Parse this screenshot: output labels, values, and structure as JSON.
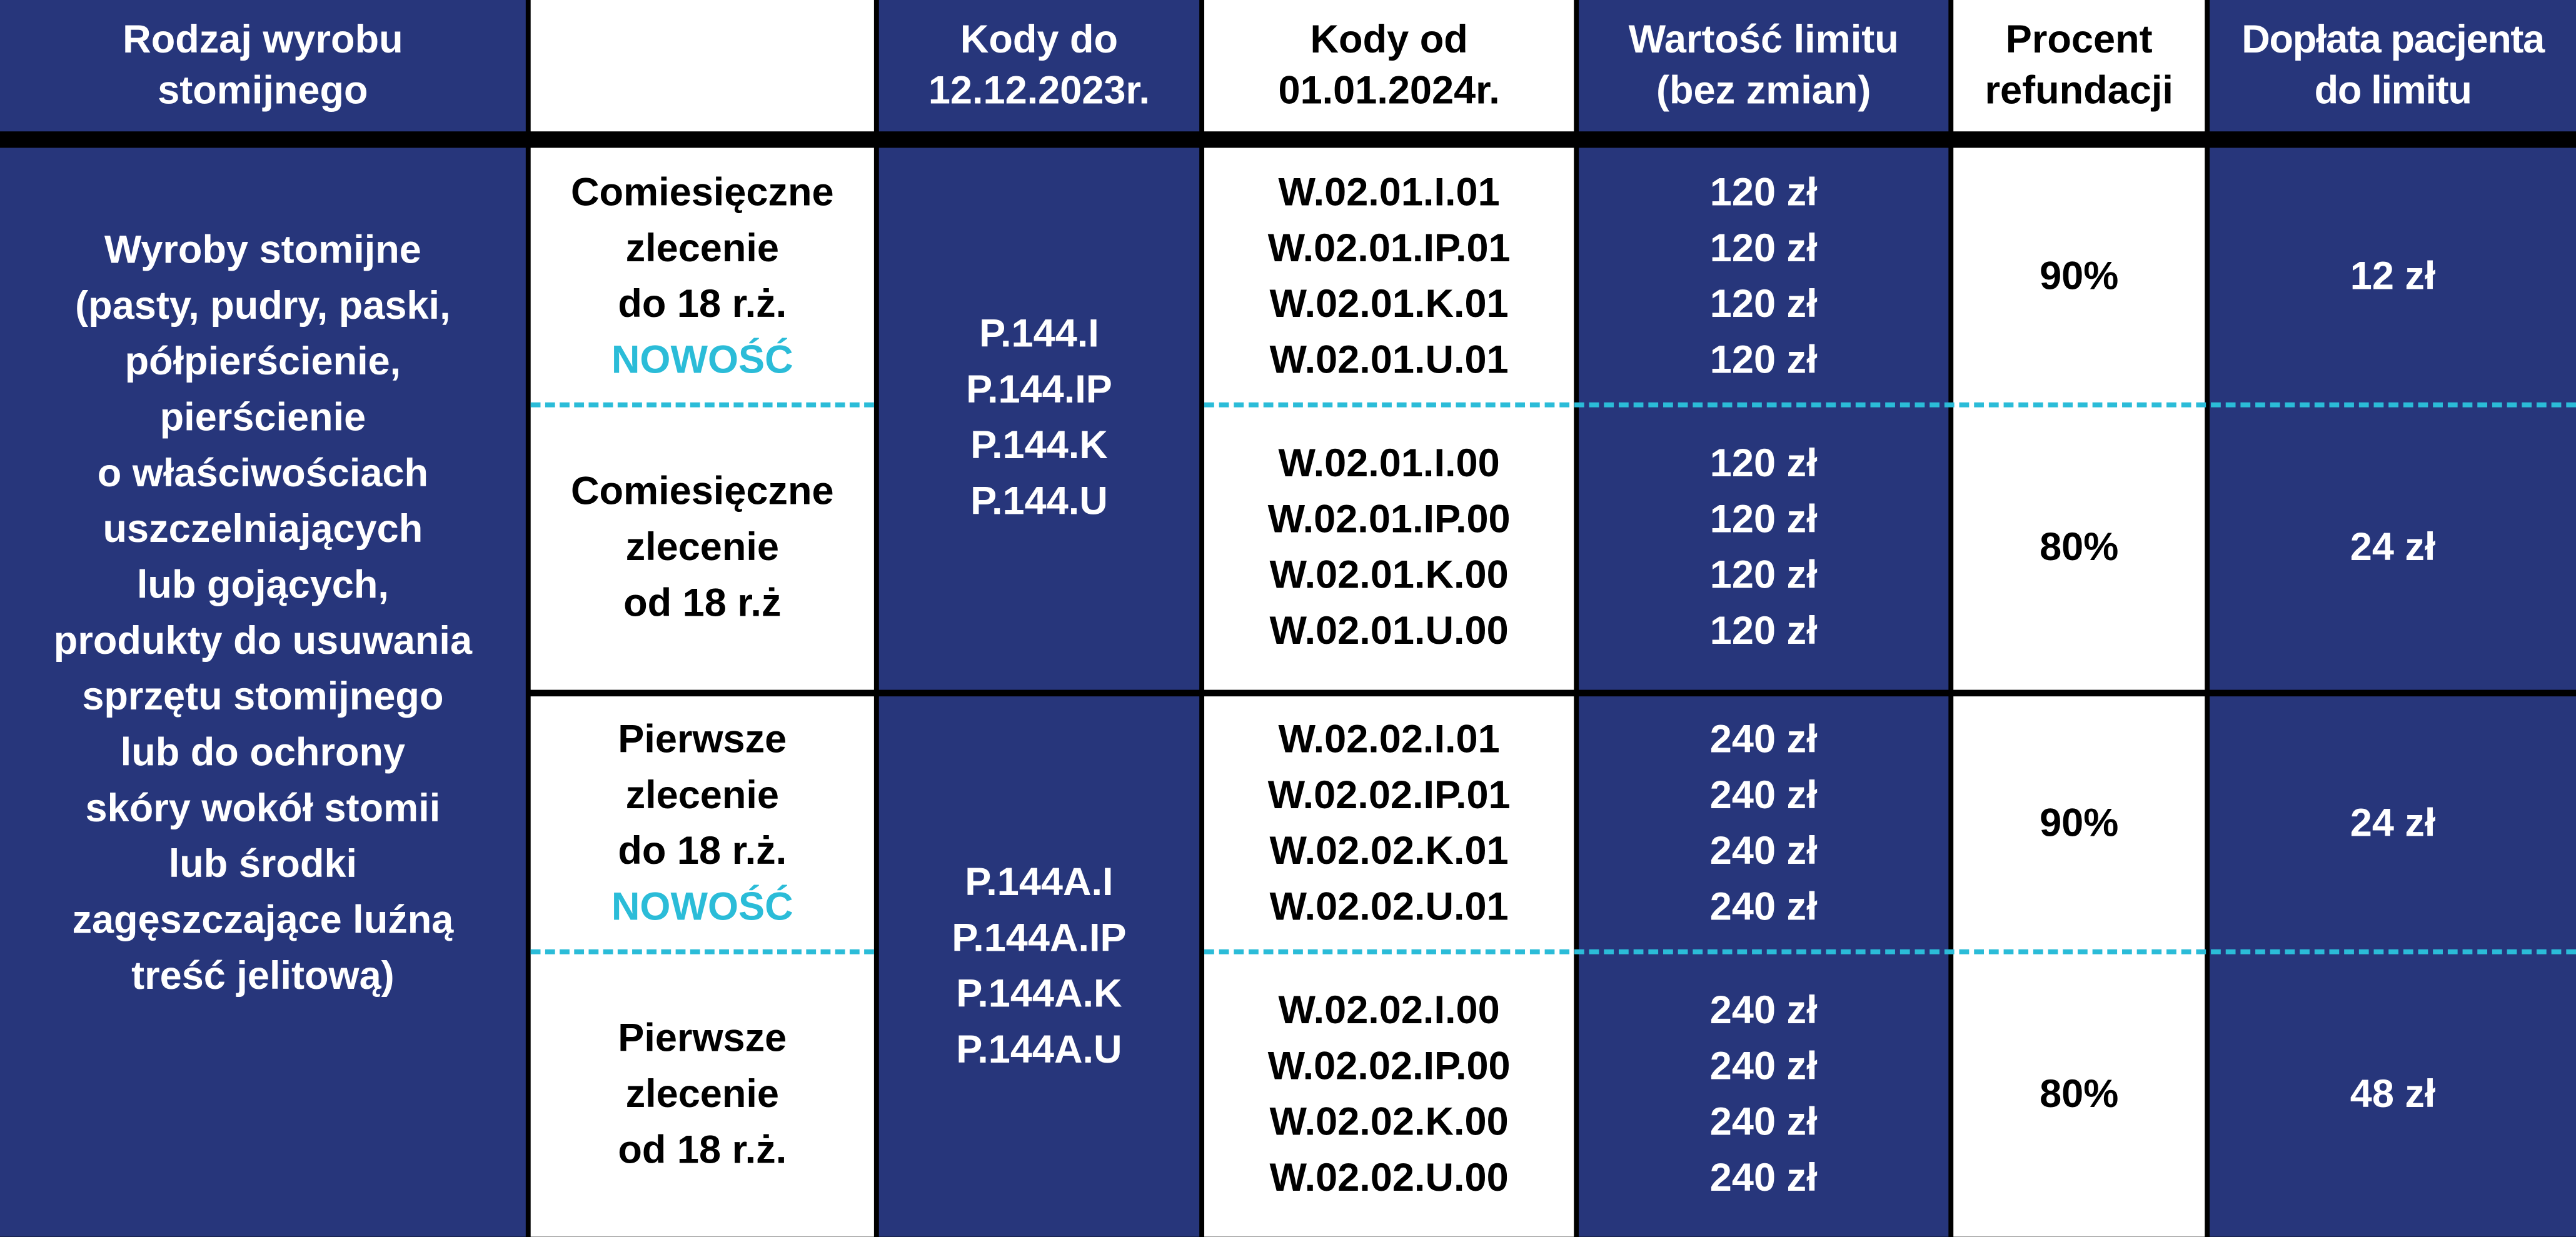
{
  "header": {
    "product_type": "Rodzaj wyrobu\nstomijnego",
    "empty": "",
    "codes_until": "Kody do\n12.12.2023r.",
    "codes_from": "Kody od\n01.01.2024r.",
    "limit_value": "Wartość limitu\n(bez zmian)",
    "refund_percent": "Procent\nrefundacji",
    "patient_copay": "Dopłata pacjenta\ndo limitu"
  },
  "product_description": "Wyroby stomijne\n(pasty, pudry, paski,\npółpierścienie,\npierścienie\no właściwościach\nuszczelniających\nlub gojących,\nprodukty do usuwania\nsprzętu stomijnego\nlub do ochrony\nskóry wokół stomii\nlub środki\nzagęszczające luźną\ntreść jelitową)",
  "groups": [
    {
      "old_codes": "P.144.I\nP.144.IP\nP.144.K\nP.144.U",
      "rows": [
        {
          "order": "Comiesięczne\nzlecenie\ndo 18 r.ż.",
          "badge": "NOWOŚĆ",
          "new_codes": "W.02.01.I.01\nW.02.01.IP.01\nW.02.01.K.01\nW.02.01.U.01",
          "limits": "120 zł\n120 zł\n120 zł\n120 zł",
          "percent": "90%",
          "copay": "12 zł"
        },
        {
          "order": "Comiesięczne\nzlecenie\nod 18 r.ż",
          "badge": "",
          "new_codes": "W.02.01.I.00\nW.02.01.IP.00\nW.02.01.K.00\nW.02.01.U.00",
          "limits": "120 zł\n120 zł\n120 zł\n120 zł",
          "percent": "80%",
          "copay": "24 zł"
        }
      ]
    },
    {
      "old_codes": "P.144A.I\nP.144A.IP\nP.144A.K\nP.144A.U",
      "rows": [
        {
          "order": "Pierwsze\nzlecenie\ndo 18 r.ż.",
          "badge": "NOWOŚĆ",
          "new_codes": "W.02.02.I.01\nW.02.02.IP.01\nW.02.02.K.01\nW.02.02.U.01",
          "limits": "240 zł\n240 zł\n240 zł\n240 zł",
          "percent": "90%",
          "copay": "24 zł"
        },
        {
          "order": "Pierwsze\nzlecenie\nod 18 r.ż.",
          "badge": "",
          "new_codes": "W.02.02.I.00\nW.02.02.IP.00\nW.02.02.K.00\nW.02.02.U.00",
          "limits": "240 zł\n240 zł\n240 zł\n240 zł",
          "percent": "80%",
          "copay": "48 zł"
        }
      ]
    }
  ],
  "colors": {
    "navy": "#27367b",
    "accent_cyan": "#2bbcd8",
    "border": "#000000"
  }
}
